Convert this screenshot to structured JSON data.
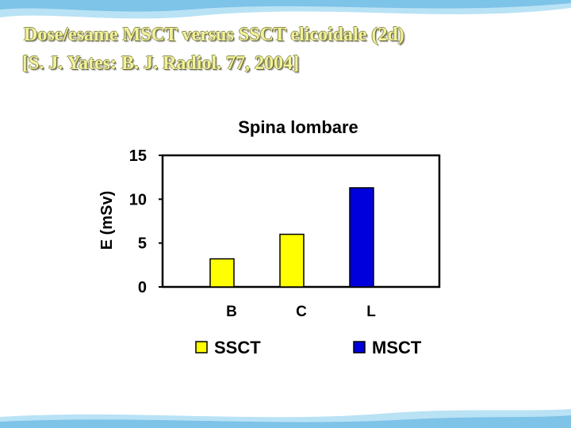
{
  "slide": {
    "title": "Dose/esame MSCT versus SSCT elicoidale (2d)",
    "subtitle": "[S. J. Yates: B. J. Radiol. 77, 2004]"
  },
  "colors": {
    "ssct": "#ffff00",
    "msct": "#0000dd",
    "title_text": "#f2f29a",
    "wave": "#7ec3e8"
  },
  "chart_data": {
    "type": "bar",
    "title": "Spina lombare",
    "ylabel": "E (mSv)",
    "xlabel": "",
    "categories": [
      "B",
      "C",
      "L"
    ],
    "ylim": [
      0,
      15
    ],
    "yticks": [
      0,
      5,
      10,
      15
    ],
    "grid": false,
    "legend_position": "bottom",
    "series": [
      {
        "name": "SSCT",
        "color": "#ffff00",
        "values": [
          3.2,
          6.0,
          null
        ]
      },
      {
        "name": "MSCT",
        "color": "#0000dd",
        "values": [
          null,
          null,
          11.3
        ]
      }
    ]
  }
}
